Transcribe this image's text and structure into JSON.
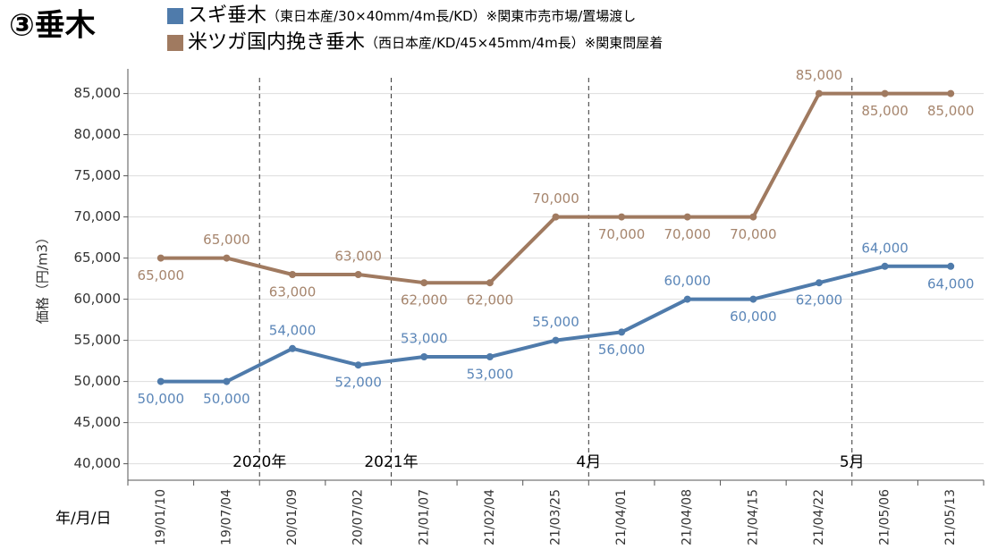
{
  "chart_data": {
    "type": "line",
    "title": "③垂木",
    "y_label": "価格（円/m3）",
    "x_label": "年/月/日",
    "categories": [
      "19/01/10",
      "19/07/04",
      "20/01/09",
      "20/07/02",
      "21/01/07",
      "21/02/04",
      "21/03/25",
      "21/04/01",
      "21/04/08",
      "21/04/15",
      "21/04/22",
      "21/05/06",
      "21/05/13"
    ],
    "series": [
      {
        "name": "スギ垂木",
        "detail": "（東日本産/30×40mm/4m長/KD）※関東市売市場/置場渡し",
        "color": "#4f7bab",
        "label_color": "#5b86b8",
        "values": [
          50000,
          50000,
          54000,
          52000,
          53000,
          53000,
          55000,
          56000,
          60000,
          60000,
          62000,
          64000,
          64000
        ],
        "value_labels": [
          "50,000",
          "50,000",
          "54,000",
          "52,000",
          "53,000",
          "53,000",
          "55,000",
          "56,000",
          "60,000",
          "60,000",
          "62,000",
          "64,000",
          "64,000"
        ]
      },
      {
        "name": "米ツガ国内挽き垂木",
        "detail": "（西日本産/KD/45×45mm/4m長）※関東問屋着",
        "color": "#a07a60",
        "label_color": "#a6856d",
        "values": [
          65000,
          65000,
          63000,
          63000,
          62000,
          62000,
          70000,
          70000,
          70000,
          70000,
          85000,
          85000,
          85000
        ],
        "value_labels": [
          "65,000",
          "65,000",
          "63,000",
          "63,000",
          "62,000",
          "62,000",
          "70,000",
          "70,000",
          "70,000",
          "70,000",
          "85,000",
          "85,000",
          "85,000"
        ]
      }
    ],
    "ylim": [
      38000,
      88000
    ],
    "yticks": [
      {
        "value": 40000,
        "label": "40,000"
      },
      {
        "value": 45000,
        "label": "45,000"
      },
      {
        "value": 50000,
        "label": "50,000"
      },
      {
        "value": 55000,
        "label": "55,000"
      },
      {
        "value": 60000,
        "label": "60,000"
      },
      {
        "value": 65000,
        "label": "65,000"
      },
      {
        "value": 70000,
        "label": "70,000"
      },
      {
        "value": 75000,
        "label": "75,000"
      },
      {
        "value": 80000,
        "label": "80,000"
      },
      {
        "value": 85000,
        "label": "85,000"
      }
    ],
    "grid": true,
    "dividers": [
      {
        "after": "19/07/04",
        "label": "2020年"
      },
      {
        "after": "20/07/02",
        "label": "2021年"
      },
      {
        "after": "21/03/25",
        "label": "4月"
      },
      {
        "after": "21/04/22",
        "label": "5月"
      }
    ]
  }
}
